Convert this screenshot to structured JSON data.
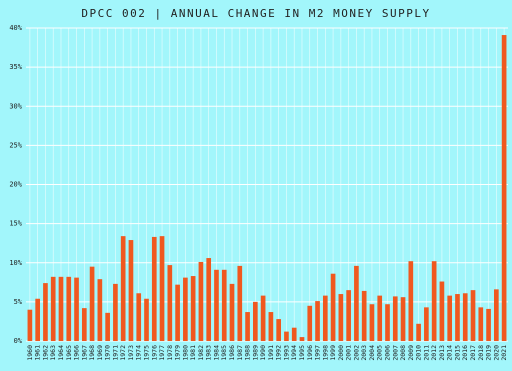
{
  "chart_data": {
    "type": "bar",
    "title": "DPCC 002 | ANNUAL CHANGE IN M2 MONEY SUPPLY",
    "categories": [
      "1960",
      "1961",
      "1962",
      "1963",
      "1964",
      "1965",
      "1966",
      "1967",
      "1968",
      "1969",
      "1970",
      "1971",
      "1972",
      "1973",
      "1974",
      "1975",
      "1976",
      "1977",
      "1978",
      "1979",
      "1980",
      "1981",
      "1982",
      "1983",
      "1984",
      "1985",
      "1986",
      "1987",
      "1988",
      "1989",
      "1990",
      "1991",
      "1992",
      "1993",
      "1994",
      "1995",
      "1996",
      "1997",
      "1998",
      "1999",
      "2000",
      "2001",
      "2002",
      "2003",
      "2004",
      "2005",
      "2006",
      "2007",
      "2008",
      "2009",
      "2010",
      "2011",
      "2012",
      "2013",
      "2014",
      "2015",
      "2016",
      "2017",
      "2018",
      "2019",
      "2020",
      "2021"
    ],
    "values": [
      4.0,
      5.4,
      7.4,
      8.2,
      8.2,
      8.2,
      8.1,
      4.2,
      9.5,
      7.9,
      3.6,
      7.3,
      13.4,
      12.9,
      6.1,
      5.4,
      13.3,
      13.4,
      9.7,
      7.2,
      8.1,
      8.3,
      10.1,
      10.6,
      9.1,
      9.1,
      7.3,
      9.6,
      3.7,
      5.0,
      5.8,
      3.7,
      2.8,
      1.2,
      1.7,
      0.5,
      4.5,
      5.1,
      5.8,
      8.6,
      6.0,
      6.5,
      9.6,
      6.4,
      4.7,
      5.8,
      4.7,
      5.7,
      5.6,
      10.2,
      2.2,
      4.3,
      10.2,
      7.6,
      5.8,
      6.0,
      6.1,
      6.5,
      4.3,
      4.1,
      6.6,
      39.1
    ],
    "color": "#f0581f",
    "ylim": [
      0,
      40
    ],
    "yticks": [
      {
        "value": 0,
        "label": "0%"
      },
      {
        "value": 5,
        "label": "5%"
      },
      {
        "value": 10,
        "label": "10%"
      },
      {
        "value": 15,
        "label": "15%"
      },
      {
        "value": 20,
        "label": "20%"
      },
      {
        "value": 25,
        "label": "25%"
      },
      {
        "value": 30,
        "label": "30%"
      },
      {
        "value": 35,
        "label": "35%"
      },
      {
        "value": 40,
        "label": "40%"
      }
    ],
    "grid": true
  }
}
